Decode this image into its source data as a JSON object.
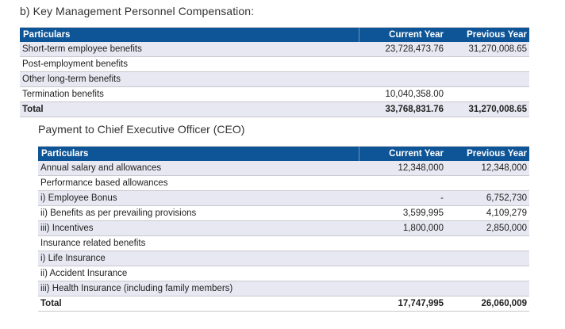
{
  "section_title": "b)  Key Management Personnel Compensation:",
  "kmp_table": {
    "headers": [
      "Particulars",
      "Current Year",
      "Previous Year"
    ],
    "rows": [
      {
        "label": "Short-term employee benefits",
        "current": "23,728,473.76",
        "previous": "31,270,008.65"
      },
      {
        "label": "Post-employment benefits",
        "current": "",
        "previous": ""
      },
      {
        "label": "Other long-term benefits",
        "current": "",
        "previous": ""
      },
      {
        "label": "Termination benefits",
        "current": "10,040,358.00",
        "previous": ""
      }
    ],
    "total": {
      "label": "Total",
      "current": "33,768,831.76",
      "previous": "31,270,008.65"
    }
  },
  "ceo_title": "Payment to Chief Executive Officer (CEO)",
  "ceo_table": {
    "headers": [
      "Particulars",
      "Current Year",
      "Previous Year"
    ],
    "rows": [
      {
        "label": "Annual salary and allowances",
        "current": "12,348,000",
        "previous": "12,348,000"
      },
      {
        "label": "Performance based allowances",
        "current": "",
        "previous": ""
      },
      {
        "label": "i)  Employee Bonus",
        "current": "-",
        "previous": "6,752,730"
      },
      {
        "label": "ii)  Benefits as per prevailing provisions",
        "current": "3,599,995",
        "previous": "4,109,279"
      },
      {
        "label": "iii) Incentives",
        "current": "1,800,000",
        "previous": "2,850,000"
      },
      {
        "label": "Insurance related benefits",
        "current": "",
        "previous": ""
      },
      {
        "label": "i)  Life Insurance",
        "current": "",
        "previous": ""
      },
      {
        "label": "ii)  Accident Insurance",
        "current": "",
        "previous": ""
      },
      {
        "label": "iii) Health Insurance (including family members)",
        "current": "",
        "previous": ""
      }
    ],
    "total": {
      "label": "Total",
      "current": "17,747,995",
      "previous": "26,060,009"
    }
  },
  "colors": {
    "header_bg": "#0e5597",
    "shaded_row": "#e8e8f2",
    "rule": "#c8c8ce"
  }
}
